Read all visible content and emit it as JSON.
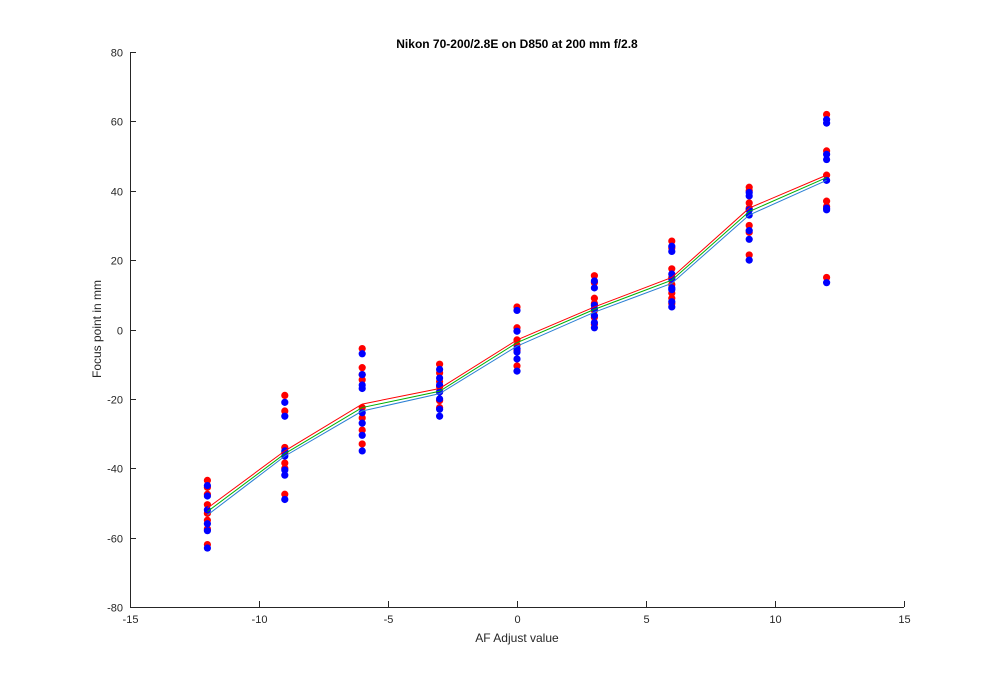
{
  "chart_data": {
    "type": "scatter",
    "title": "Nikon 70-200/2.8E on D850 at 200 mm f/2.8",
    "xlabel": "AF Adjust value",
    "ylabel": "Focus point in mm",
    "xlim": [
      -15,
      15
    ],
    "ylim": [
      -80,
      80
    ],
    "xticks": [
      -15,
      -10,
      -5,
      0,
      5,
      10,
      15
    ],
    "yticks": [
      -80,
      -60,
      -40,
      -20,
      0,
      20,
      40,
      60,
      80
    ],
    "grid": false,
    "series": [
      {
        "color": "#ff0000",
        "marker": "dot",
        "points": [
          [
            -12,
            -43.5
          ],
          [
            -12,
            -45.5
          ],
          [
            -12,
            -47.5
          ],
          [
            -12,
            -50.5
          ],
          [
            -12,
            -53
          ],
          [
            -12,
            -55
          ],
          [
            -12,
            -57.5
          ],
          [
            -12,
            -62
          ],
          [
            -9,
            -19
          ],
          [
            -9,
            -23.5
          ],
          [
            -9,
            -34
          ],
          [
            -9,
            -35.5
          ],
          [
            -9,
            -38.5
          ],
          [
            -9,
            -40
          ],
          [
            -9,
            -47.5
          ],
          [
            -6,
            -5.5
          ],
          [
            -6,
            -11
          ],
          [
            -6,
            -13
          ],
          [
            -6,
            -14.5
          ],
          [
            -6,
            -22.5
          ],
          [
            -6,
            -25.5
          ],
          [
            -6,
            -29
          ],
          [
            -6,
            -33
          ],
          [
            -3,
            -10
          ],
          [
            -3,
            -12.5
          ],
          [
            -3,
            -15
          ],
          [
            -3,
            -16.5
          ],
          [
            -3,
            -18
          ],
          [
            -3,
            -20.5
          ],
          [
            -3,
            -22.5
          ],
          [
            0,
            6.5
          ],
          [
            0,
            0.5
          ],
          [
            0,
            -3
          ],
          [
            0,
            -4.5
          ],
          [
            0,
            -6
          ],
          [
            0,
            -10.5
          ],
          [
            3,
            15.5
          ],
          [
            3,
            13.5
          ],
          [
            3,
            9
          ],
          [
            3,
            7.5
          ],
          [
            3,
            5.5
          ],
          [
            3,
            3.5
          ],
          [
            3,
            1.5
          ],
          [
            6,
            25.5
          ],
          [
            6,
            23.5
          ],
          [
            6,
            17.5
          ],
          [
            6,
            15
          ],
          [
            6,
            13
          ],
          [
            6,
            10.5
          ],
          [
            6,
            9
          ],
          [
            6,
            7.5
          ],
          [
            9,
            41
          ],
          [
            9,
            40
          ],
          [
            9,
            36.5
          ],
          [
            9,
            35
          ],
          [
            9,
            30
          ],
          [
            9,
            28
          ],
          [
            9,
            21.5
          ],
          [
            12,
            62
          ],
          [
            12,
            51.5
          ],
          [
            12,
            44.5
          ],
          [
            12,
            37
          ],
          [
            12,
            35.5
          ],
          [
            12,
            15
          ]
        ]
      },
      {
        "color": "#0000ff",
        "marker": "dot",
        "points": [
          [
            -12,
            -45
          ],
          [
            -12,
            -48
          ],
          [
            -12,
            -52
          ],
          [
            -12,
            -56
          ],
          [
            -12,
            -58
          ],
          [
            -12,
            -63
          ],
          [
            -9,
            -21
          ],
          [
            -9,
            -25
          ],
          [
            -9,
            -35
          ],
          [
            -9,
            -36.5
          ],
          [
            -9,
            -40.5
          ],
          [
            -9,
            -42
          ],
          [
            -9,
            -49
          ],
          [
            -6,
            -7
          ],
          [
            -6,
            -13
          ],
          [
            -6,
            -16
          ],
          [
            -6,
            -17
          ],
          [
            -6,
            -24
          ],
          [
            -6,
            -27
          ],
          [
            -6,
            -30.5
          ],
          [
            -6,
            -35
          ],
          [
            -3,
            -11.5
          ],
          [
            -3,
            -14
          ],
          [
            -3,
            -16
          ],
          [
            -3,
            -18
          ],
          [
            -3,
            -20
          ],
          [
            -3,
            -23
          ],
          [
            -3,
            -25
          ],
          [
            0,
            5.5
          ],
          [
            0,
            -0.5
          ],
          [
            0,
            -5.5
          ],
          [
            0,
            -6.5
          ],
          [
            0,
            -8.5
          ],
          [
            0,
            -12
          ],
          [
            3,
            14
          ],
          [
            3,
            12
          ],
          [
            3,
            7
          ],
          [
            3,
            6
          ],
          [
            3,
            4
          ],
          [
            3,
            2
          ],
          [
            3,
            0.5
          ],
          [
            6,
            24
          ],
          [
            6,
            22.5
          ],
          [
            6,
            16
          ],
          [
            6,
            14.5
          ],
          [
            6,
            12
          ],
          [
            6,
            11.5
          ],
          [
            6,
            8
          ],
          [
            6,
            6.5
          ],
          [
            9,
            39.5
          ],
          [
            9,
            38.5
          ],
          [
            9,
            34.5
          ],
          [
            9,
            33
          ],
          [
            9,
            28.5
          ],
          [
            9,
            26
          ],
          [
            9,
            20
          ],
          [
            12,
            60.5
          ],
          [
            12,
            59.5
          ],
          [
            12,
            50.5
          ],
          [
            12,
            49
          ],
          [
            12,
            43
          ],
          [
            12,
            35
          ],
          [
            12,
            34.5
          ],
          [
            12,
            13.5
          ]
        ]
      }
    ],
    "lines": [
      {
        "color": "#ff0000",
        "x": [
          -12,
          -9,
          -6,
          -3,
          0,
          3,
          6,
          9,
          12
        ],
        "y": [
          -51.5,
          -35,
          -21.5,
          -17,
          -3,
          6.5,
          15,
          35,
          44.5
        ]
      },
      {
        "color": "#00b000",
        "x": [
          -12,
          -9,
          -6,
          -3,
          0,
          3,
          6,
          9,
          12
        ],
        "y": [
          -52.5,
          -35.8,
          -22.5,
          -17.8,
          -3.8,
          5.8,
          14.2,
          34,
          43.8
        ]
      },
      {
        "color": "#2a7fd4",
        "x": [
          -12,
          -9,
          -6,
          -3,
          0,
          3,
          6,
          9,
          12
        ],
        "y": [
          -53.5,
          -36.5,
          -23.5,
          -18.5,
          -4.8,
          5,
          13.3,
          33,
          43
        ]
      }
    ]
  }
}
